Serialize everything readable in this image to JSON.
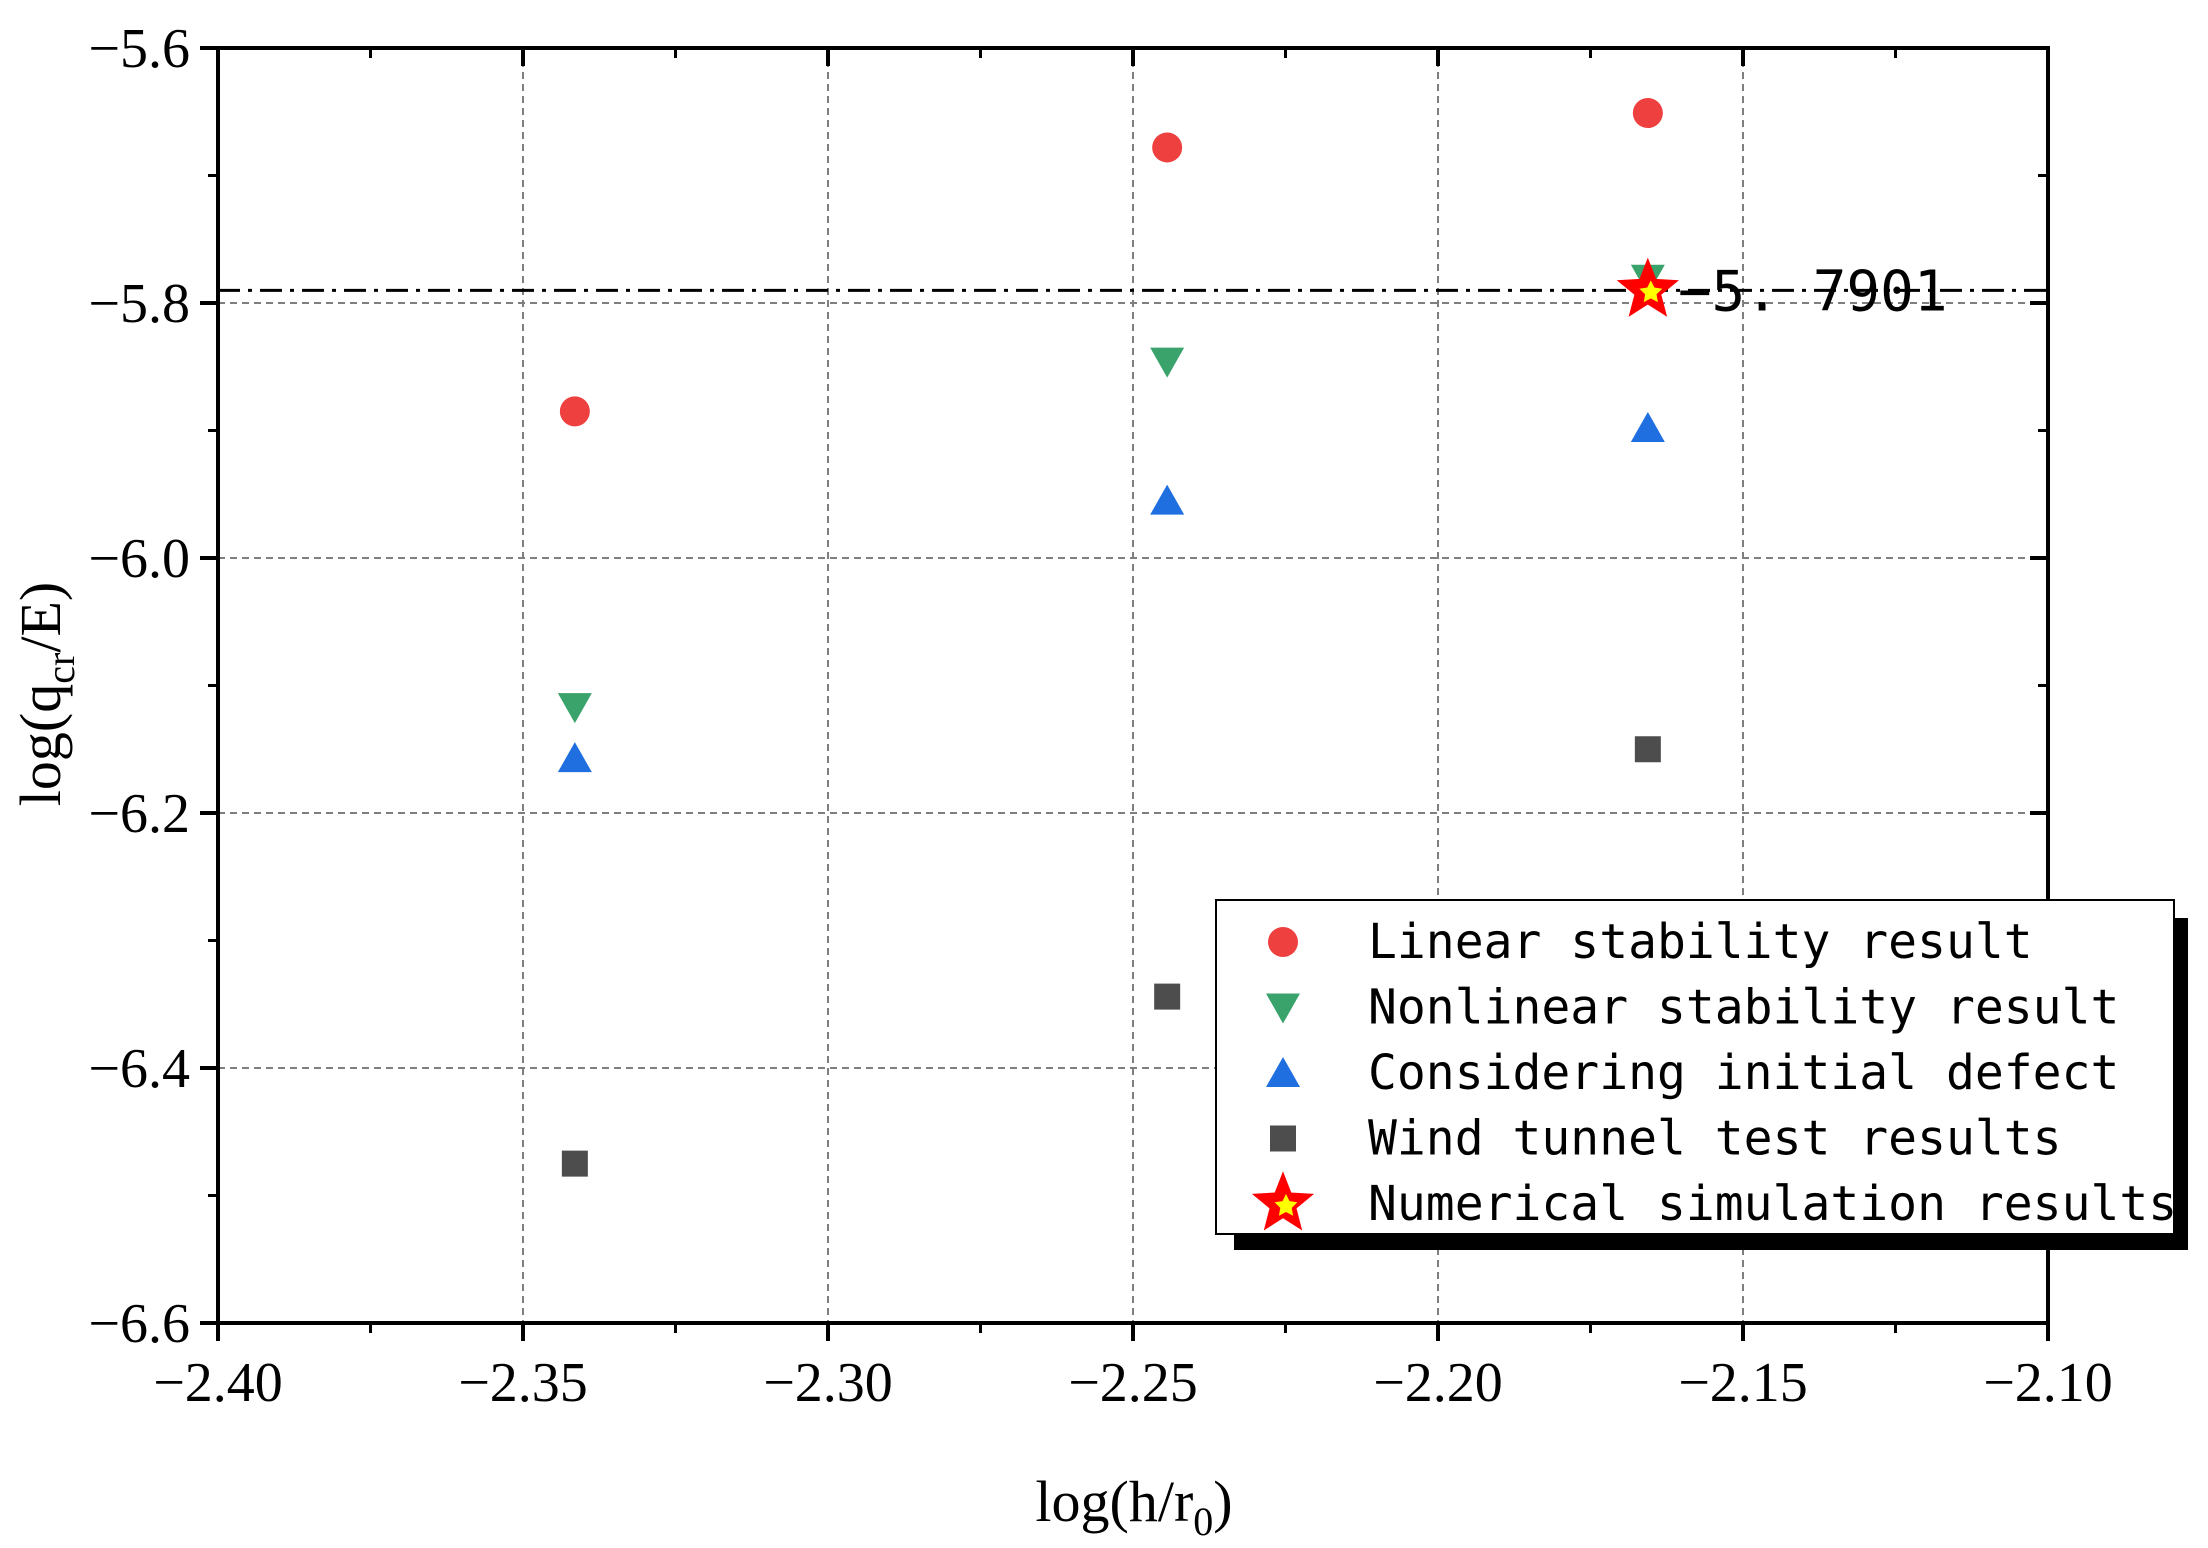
{
  "chart_data": {
    "type": "scatter",
    "title": "",
    "xlabel": "log(h/r0)",
    "ylabel": "log(qcr/E)",
    "xlabel_parts": {
      "base": "log(h/r",
      "sub": "0",
      "tail": ")"
    },
    "ylabel_parts": {
      "base": "log(q",
      "sub": "cr",
      "tail": "/E)"
    },
    "xlim": [
      -2.4,
      -2.1
    ],
    "ylim": [
      -6.6,
      -5.6
    ],
    "xticks": [
      -2.4,
      -2.35,
      -2.3,
      -2.25,
      -2.2,
      -2.15,
      -2.1
    ],
    "xtick_labels": [
      "−2.40",
      "−2.35",
      "−2.30",
      "−2.25",
      "−2.20",
      "−2.15",
      "−2.10"
    ],
    "yticks": [
      -5.6,
      -5.8,
      -6.0,
      -6.2,
      -6.4,
      -6.6
    ],
    "ytick_labels": [
      "−5.6",
      "−5.8",
      "−6.0",
      "−6.2",
      "−6.4",
      "−6.6"
    ],
    "grid": true,
    "legend_position": "lower-right",
    "series": [
      {
        "name": "Linear stability result",
        "marker": "circle",
        "color": "#ef4040",
        "x": [
          -2.3415,
          -2.2444,
          -2.1656
        ],
        "y": [
          -5.885,
          -5.678,
          -5.651
        ]
      },
      {
        "name": "Nonlinear stability result",
        "marker": "triangle-down",
        "color": "#3aa36b",
        "x": [
          -2.3415,
          -2.2444,
          -2.1656
        ],
        "y": [
          -6.117,
          -5.846,
          -5.781
        ]
      },
      {
        "name": "Considering initial defect",
        "marker": "triangle-up",
        "color": "#1f6fe0",
        "x": [
          -2.3415,
          -2.2444,
          -2.1656
        ],
        "y": [
          -6.157,
          -5.955,
          -5.898
        ]
      },
      {
        "name": "Wind tunnel test results",
        "marker": "square",
        "color": "#4d4d4d",
        "x": [
          -2.3415,
          -2.2444,
          -2.1656
        ],
        "y": [
          -6.475,
          -6.344,
          -6.15
        ]
      },
      {
        "name": "Numerical simulation results",
        "marker": "star",
        "color": "#ff0000",
        "fill_inner": "#ffff00",
        "x": [
          -2.1656
        ],
        "y": [
          -5.7901
        ]
      }
    ],
    "reference_line": {
      "y": -5.7901,
      "style": "dash-dot",
      "color": "#000000"
    },
    "annotation": {
      "text": "−5. 7901",
      "x": -2.1656,
      "y": -5.7901
    }
  }
}
